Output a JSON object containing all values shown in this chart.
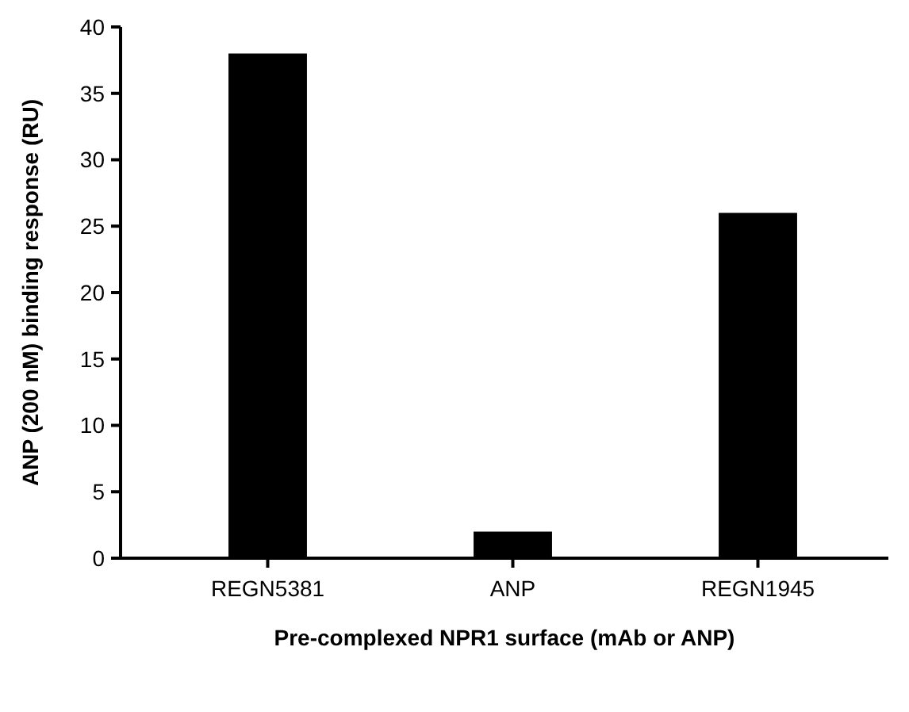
{
  "chart_data": {
    "type": "bar",
    "xlabel": "Pre-complexed NPR1 surface (mAb or ANP)",
    "ylabel": "ANP (200 nM) binding response (RU)",
    "categories": [
      "REGN5381",
      "ANP",
      "REGN1945"
    ],
    "values": [
      38,
      2,
      26
    ],
    "color": "#000000",
    "ylim": [
      0,
      40
    ],
    "yticks": [
      0,
      5,
      10,
      15,
      20,
      25,
      30,
      35,
      40
    ],
    "grid": false
  }
}
